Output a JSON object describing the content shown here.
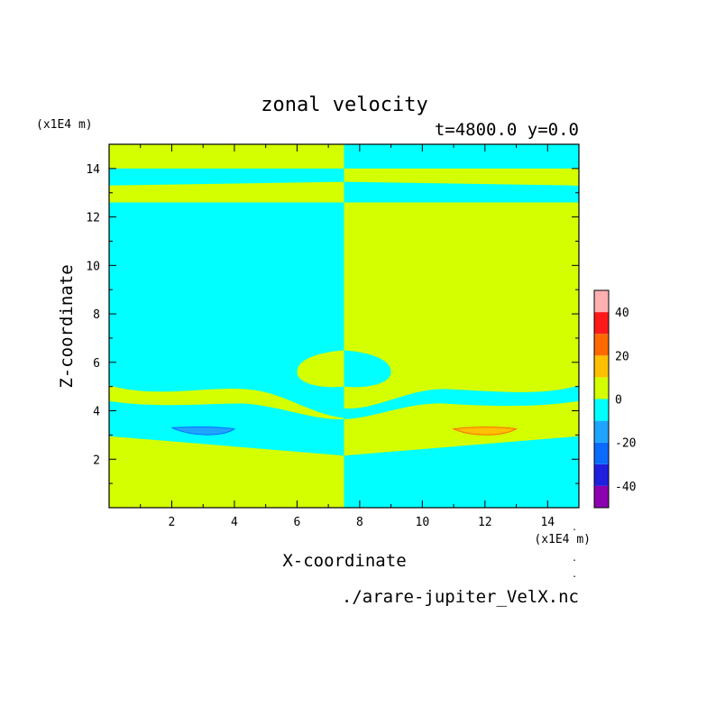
{
  "colors": {
    "c_m50_m40": "#8c00b0",
    "c_m40_m30": "#1f1fe0",
    "c_m30_m20": "#0a6cff",
    "c_m20_m10": "#1fa5ff",
    "c_m10_0": "#00ffff",
    "c_0_10": "#d4ff00",
    "c_10_20": "#ffc000",
    "c_20_30": "#ff6a00",
    "c_30_40": "#ff1a1a",
    "c_40_50": "#ffb0b0",
    "frame": "#000000"
  },
  "chart_data": {
    "type": "heatmap",
    "title": "zonal velocity",
    "subtitle": "t=4800.0 y=0.0",
    "xlabel": "X-coordinate",
    "ylabel": "Z-coordinate",
    "x_unit": "(x1E4 m)",
    "y_unit": "(x1E4 m)",
    "source": "./arare-jupiter_VelX.nc",
    "xlim": [
      0,
      15
    ],
    "ylim": [
      0,
      15
    ],
    "xticks": [
      2,
      4,
      6,
      8,
      10,
      12,
      14
    ],
    "yticks": [
      2,
      4,
      6,
      8,
      10,
      12,
      14
    ],
    "colorbar": {
      "levels": [
        -50,
        -40,
        -30,
        -20,
        -10,
        0,
        10,
        20,
        30,
        40,
        50
      ],
      "labels": [
        40,
        20,
        0,
        -20,
        -40
      ],
      "colors": [
        "c_m50_m40",
        "c_m40_m30",
        "c_m30_m20",
        "c_m20_m10",
        "c_m10_0",
        "c_0_10",
        "c_10_20",
        "c_20_30",
        "c_30_40",
        "c_40_50"
      ]
    },
    "regions": [
      {
        "name": "upper-left band",
        "color": "c_m10_0",
        "x": [
          0,
          7.5
        ],
        "z": [
          12.6,
          14.0
        ]
      },
      {
        "name": "upper-right band",
        "color": "c_0_10",
        "x": [
          7.5,
          15
        ],
        "z": [
          12.6,
          14.0
        ]
      },
      {
        "name": "left negative core",
        "color": "c_m20_m10",
        "x": [
          2.0,
          4.0
        ],
        "z": [
          3.0,
          3.3
        ]
      },
      {
        "name": "right positive core",
        "color": "c_10_20",
        "x": [
          11.0,
          13.0
        ],
        "z": [
          3.0,
          3.3
        ]
      }
    ],
    "ticks_side_marks": "."
  }
}
